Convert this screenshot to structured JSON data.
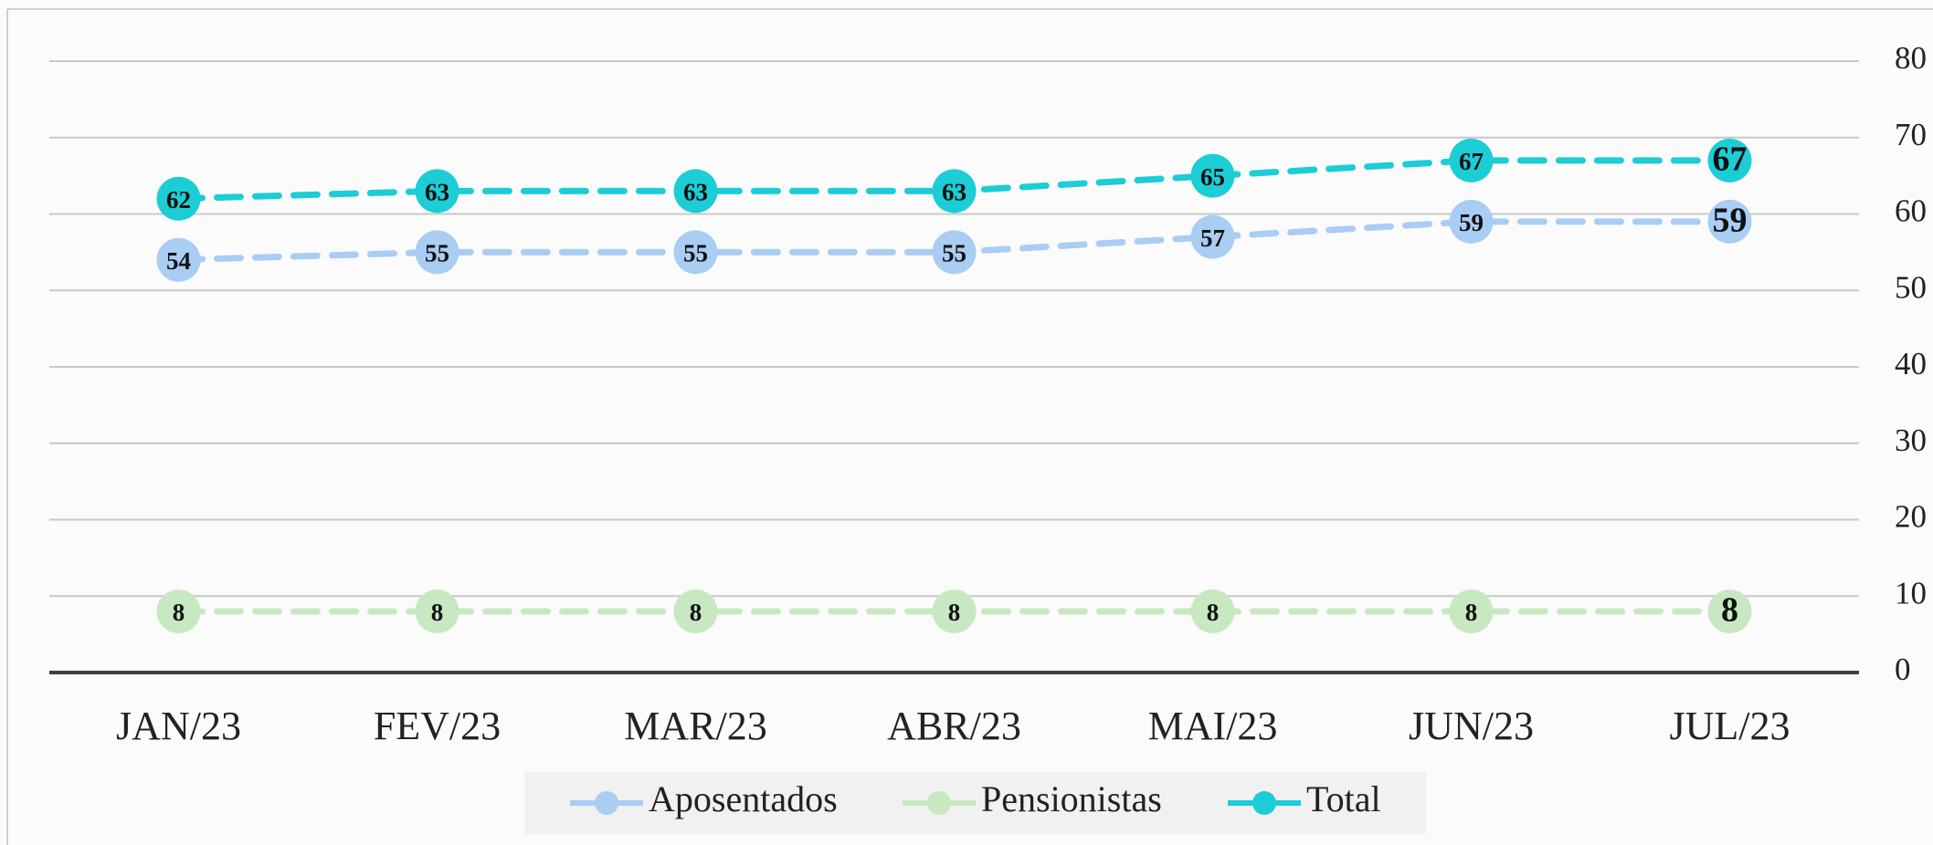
{
  "chart_data": {
    "type": "line",
    "categories": [
      "JAN/23",
      "FEV/23",
      "MAR/23",
      "ABR/23",
      "MAI/23",
      "JUN/23",
      "JUL/23"
    ],
    "series": [
      {
        "name": "Aposentados",
        "color": "#a9cdf3",
        "values": [
          54,
          55,
          55,
          55,
          57,
          59,
          59
        ]
      },
      {
        "name": "Pensionistas",
        "color": "#c8e8c2",
        "values": [
          8,
          8,
          8,
          8,
          8,
          8,
          8
        ]
      },
      {
        "name": "Total",
        "color": "#1ccdd6",
        "values": [
          62,
          63,
          63,
          63,
          65,
          67,
          67
        ]
      }
    ],
    "ylim": [
      0,
      80
    ],
    "yticks": [
      0,
      10,
      20,
      30,
      40,
      50,
      60,
      70,
      80
    ],
    "grid": true,
    "legend": "bottom"
  }
}
